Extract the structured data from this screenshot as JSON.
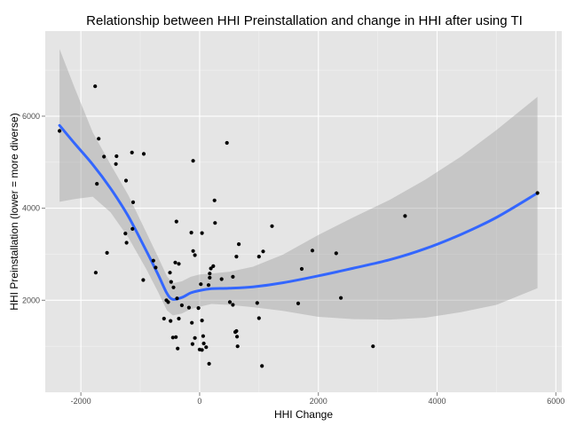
{
  "chart_data": {
    "type": "scatter",
    "title": "Relationship between HHI Preinstallation and change in HHI after using TI",
    "xlabel": "HHI Change",
    "ylabel": "HHI Preinstallation (lower = more diverse)",
    "xlim": [
      -2600,
      6100
    ],
    "ylim": [
      0,
      7850
    ],
    "x_ticks": [
      -2000,
      0,
      2000,
      4000,
      6000
    ],
    "x_tick_labels": [
      "-2000",
      "0",
      "2000",
      "4000",
      "6000"
    ],
    "y_ticks": [
      2000,
      4000,
      6000
    ],
    "y_tick_labels": [
      "2000",
      "4000",
      "6000"
    ],
    "grid": true,
    "legend": "none",
    "colors": {
      "panel": "#e5e5e5",
      "grid_major": "#ffffff",
      "grid_minor": "#f2f2f2",
      "points": "#000000",
      "smooth_line": "#3366ff",
      "confidence_band": "#999999"
    },
    "points": [
      {
        "x": -2360,
        "y": 5680
      },
      {
        "x": -1760,
        "y": 6650
      },
      {
        "x": -1700,
        "y": 5510
      },
      {
        "x": -1610,
        "y": 5120
      },
      {
        "x": -1730,
        "y": 4530
      },
      {
        "x": -1750,
        "y": 2600
      },
      {
        "x": -1560,
        "y": 3030
      },
      {
        "x": -1400,
        "y": 5130
      },
      {
        "x": -1410,
        "y": 4960
      },
      {
        "x": -1240,
        "y": 4600
      },
      {
        "x": -1140,
        "y": 5210
      },
      {
        "x": -940,
        "y": 5180
      },
      {
        "x": -1120,
        "y": 4130
      },
      {
        "x": -1130,
        "y": 3550
      },
      {
        "x": -1250,
        "y": 3450
      },
      {
        "x": -1230,
        "y": 3250
      },
      {
        "x": -950,
        "y": 2440
      },
      {
        "x": -780,
        "y": 2860
      },
      {
        "x": -740,
        "y": 2710
      },
      {
        "x": -500,
        "y": 2600
      },
      {
        "x": -410,
        "y": 2820
      },
      {
        "x": -350,
        "y": 2790
      },
      {
        "x": -390,
        "y": 3710
      },
      {
        "x": -140,
        "y": 3470
      },
      {
        "x": -110,
        "y": 5030
      },
      {
        "x": -110,
        "y": 3070
      },
      {
        "x": -80,
        "y": 2980
      },
      {
        "x": -560,
        "y": 2000
      },
      {
        "x": -530,
        "y": 1960
      },
      {
        "x": -480,
        "y": 2400
      },
      {
        "x": -440,
        "y": 2280
      },
      {
        "x": -380,
        "y": 2040
      },
      {
        "x": -600,
        "y": 1600
      },
      {
        "x": -490,
        "y": 1550
      },
      {
        "x": -350,
        "y": 1600
      },
      {
        "x": -450,
        "y": 1190
      },
      {
        "x": -400,
        "y": 1200
      },
      {
        "x": -370,
        "y": 950
      },
      {
        "x": -300,
        "y": 1890
      },
      {
        "x": -180,
        "y": 1840
      },
      {
        "x": -130,
        "y": 1510
      },
      {
        "x": -80,
        "y": 1180
      },
      {
        "x": -120,
        "y": 1050
      },
      {
        "x": -20,
        "y": 1830
      },
      {
        "x": 20,
        "y": 2350
      },
      {
        "x": 40,
        "y": 1560
      },
      {
        "x": 60,
        "y": 1220
      },
      {
        "x": 70,
        "y": 1060
      },
      {
        "x": 110,
        "y": 980
      },
      {
        "x": 0,
        "y": 930
      },
      {
        "x": 40,
        "y": 920
      },
      {
        "x": 170,
        "y": 2580
      },
      {
        "x": 170,
        "y": 2490
      },
      {
        "x": 150,
        "y": 2330
      },
      {
        "x": 190,
        "y": 2690
      },
      {
        "x": 230,
        "y": 2740
      },
      {
        "x": 250,
        "y": 4170
      },
      {
        "x": 260,
        "y": 3680
      },
      {
        "x": 40,
        "y": 3460
      },
      {
        "x": 160,
        "y": 620
      },
      {
        "x": 370,
        "y": 2460
      },
      {
        "x": 460,
        "y": 5420
      },
      {
        "x": 510,
        "y": 1960
      },
      {
        "x": 560,
        "y": 1900
      },
      {
        "x": 600,
        "y": 1310
      },
      {
        "x": 620,
        "y": 1330
      },
      {
        "x": 630,
        "y": 1210
      },
      {
        "x": 640,
        "y": 1000
      },
      {
        "x": 560,
        "y": 2510
      },
      {
        "x": 620,
        "y": 2950
      },
      {
        "x": 660,
        "y": 3220
      },
      {
        "x": 970,
        "y": 1940
      },
      {
        "x": 1000,
        "y": 1610
      },
      {
        "x": 1000,
        "y": 2950
      },
      {
        "x": 1070,
        "y": 3060
      },
      {
        "x": 1220,
        "y": 3610
      },
      {
        "x": 1050,
        "y": 570
      },
      {
        "x": 1660,
        "y": 1930
      },
      {
        "x": 1720,
        "y": 2680
      },
      {
        "x": 1900,
        "y": 3080
      },
      {
        "x": 2300,
        "y": 3020
      },
      {
        "x": 2380,
        "y": 2050
      },
      {
        "x": 2920,
        "y": 1000
      },
      {
        "x": 3460,
        "y": 3830
      },
      {
        "x": 5690,
        "y": 4330
      }
    ],
    "smooth_line": [
      {
        "x": -2360,
        "y": 5800
      },
      {
        "x": -2100,
        "y": 5400
      },
      {
        "x": -1800,
        "y": 4950
      },
      {
        "x": -1500,
        "y": 4430
      },
      {
        "x": -1200,
        "y": 3820
      },
      {
        "x": -900,
        "y": 3080
      },
      {
        "x": -700,
        "y": 2560
      },
      {
        "x": -550,
        "y": 2150
      },
      {
        "x": -450,
        "y": 2020
      },
      {
        "x": -300,
        "y": 2060
      },
      {
        "x": -150,
        "y": 2160
      },
      {
        "x": 0,
        "y": 2210
      },
      {
        "x": 200,
        "y": 2250
      },
      {
        "x": 500,
        "y": 2260
      },
      {
        "x": 900,
        "y": 2290
      },
      {
        "x": 1400,
        "y": 2380
      },
      {
        "x": 2000,
        "y": 2530
      },
      {
        "x": 2600,
        "y": 2700
      },
      {
        "x": 3200,
        "y": 2880
      },
      {
        "x": 3800,
        "y": 3120
      },
      {
        "x": 4400,
        "y": 3430
      },
      {
        "x": 5000,
        "y": 3800
      },
      {
        "x": 5690,
        "y": 4330
      }
    ],
    "confidence_upper": [
      {
        "x": -2360,
        "y": 7460
      },
      {
        "x": -2100,
        "y": 6600
      },
      {
        "x": -1800,
        "y": 5650
      },
      {
        "x": -1500,
        "y": 4950
      },
      {
        "x": -1200,
        "y": 4280
      },
      {
        "x": -900,
        "y": 3480
      },
      {
        "x": -700,
        "y": 2940
      },
      {
        "x": -550,
        "y": 2520
      },
      {
        "x": -450,
        "y": 2370
      },
      {
        "x": -300,
        "y": 2410
      },
      {
        "x": -150,
        "y": 2510
      },
      {
        "x": 0,
        "y": 2560
      },
      {
        "x": 200,
        "y": 2580
      },
      {
        "x": 500,
        "y": 2620
      },
      {
        "x": 900,
        "y": 2730
      },
      {
        "x": 1400,
        "y": 2990
      },
      {
        "x": 2000,
        "y": 3420
      },
      {
        "x": 2600,
        "y": 3810
      },
      {
        "x": 3200,
        "y": 4180
      },
      {
        "x": 3800,
        "y": 4620
      },
      {
        "x": 4400,
        "y": 5120
      },
      {
        "x": 5000,
        "y": 5700
      },
      {
        "x": 5690,
        "y": 6420
      }
    ],
    "confidence_lower": [
      {
        "x": -2360,
        "y": 4140
      },
      {
        "x": -2100,
        "y": 4200
      },
      {
        "x": -1800,
        "y": 4250
      },
      {
        "x": -1500,
        "y": 3910
      },
      {
        "x": -1200,
        "y": 3360
      },
      {
        "x": -900,
        "y": 2680
      },
      {
        "x": -700,
        "y": 2180
      },
      {
        "x": -550,
        "y": 1780
      },
      {
        "x": -450,
        "y": 1670
      },
      {
        "x": -300,
        "y": 1710
      },
      {
        "x": -150,
        "y": 1810
      },
      {
        "x": 0,
        "y": 1860
      },
      {
        "x": 200,
        "y": 1920
      },
      {
        "x": 500,
        "y": 1900
      },
      {
        "x": 900,
        "y": 1850
      },
      {
        "x": 1400,
        "y": 1770
      },
      {
        "x": 2000,
        "y": 1640
      },
      {
        "x": 2600,
        "y": 1590
      },
      {
        "x": 3200,
        "y": 1580
      },
      {
        "x": 3800,
        "y": 1620
      },
      {
        "x": 4400,
        "y": 1740
      },
      {
        "x": 5000,
        "y": 1900
      },
      {
        "x": 5690,
        "y": 2260
      }
    ]
  }
}
